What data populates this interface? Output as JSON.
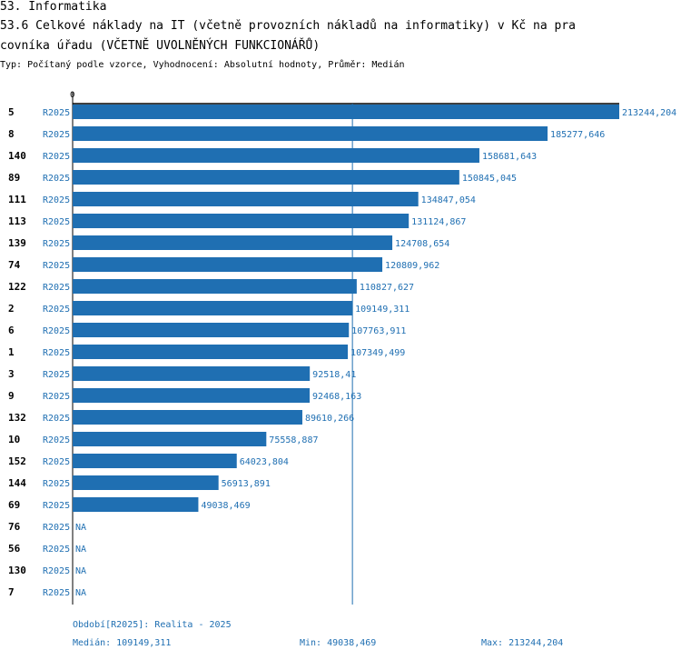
{
  "header": {
    "section": "53. Informatika",
    "title_line1": "53.6 Celkové náklady na IT (včetně provozních nákladů na informatiky) v Kč na pra",
    "title_line2": "covníka úřadu (VČETNĚ UVOLNĚNÝCH FUNKCIONÁŘŮ)",
    "subtitle": "Typ: Počítaný podle vzorce, Vyhodnocení: Absolutní hodnoty, Průměr: Medián"
  },
  "chart_data": {
    "type": "bar",
    "orientation": "horizontal",
    "axis_zero_label": "0",
    "xlim": [
      0,
      213244.204
    ],
    "reference_line": {
      "label": "Medián",
      "value": 109149.311
    },
    "bar_color": "#1f6fb2",
    "rows": [
      {
        "id": "5",
        "series": "R2025",
        "value": 213244.204,
        "label": "213244,204"
      },
      {
        "id": "8",
        "series": "R2025",
        "value": 185277.646,
        "label": "185277,646"
      },
      {
        "id": "140",
        "series": "R2025",
        "value": 158681.643,
        "label": "158681,643"
      },
      {
        "id": "89",
        "series": "R2025",
        "value": 150845.045,
        "label": "150845,045"
      },
      {
        "id": "111",
        "series": "R2025",
        "value": 134847.054,
        "label": "134847,054"
      },
      {
        "id": "113",
        "series": "R2025",
        "value": 131124.867,
        "label": "131124,867"
      },
      {
        "id": "139",
        "series": "R2025",
        "value": 124708.654,
        "label": "124708,654"
      },
      {
        "id": "74",
        "series": "R2025",
        "value": 120809.962,
        "label": "120809,962"
      },
      {
        "id": "122",
        "series": "R2025",
        "value": 110827.627,
        "label": "110827,627"
      },
      {
        "id": "2",
        "series": "R2025",
        "value": 109149.311,
        "label": "109149,311"
      },
      {
        "id": "6",
        "series": "R2025",
        "value": 107763.911,
        "label": "107763,911"
      },
      {
        "id": "1",
        "series": "R2025",
        "value": 107349.499,
        "label": "107349,499"
      },
      {
        "id": "3",
        "series": "R2025",
        "value": 92518.41,
        "label": "92518,41"
      },
      {
        "id": "9",
        "series": "R2025",
        "value": 92468.163,
        "label": "92468,163"
      },
      {
        "id": "132",
        "series": "R2025",
        "value": 89610.266,
        "label": "89610,266"
      },
      {
        "id": "10",
        "series": "R2025",
        "value": 75558.887,
        "label": "75558,887"
      },
      {
        "id": "152",
        "series": "R2025",
        "value": 64023.804,
        "label": "64023,804"
      },
      {
        "id": "144",
        "series": "R2025",
        "value": 56913.891,
        "label": "56913,891"
      },
      {
        "id": "69",
        "series": "R2025",
        "value": 49038.469,
        "label": "49038,469"
      },
      {
        "id": "76",
        "series": "R2025",
        "value": null,
        "label": "NA"
      },
      {
        "id": "56",
        "series": "R2025",
        "value": null,
        "label": "NA"
      },
      {
        "id": "130",
        "series": "R2025",
        "value": null,
        "label": "NA"
      },
      {
        "id": "7",
        "series": "R2025",
        "value": null,
        "label": "NA"
      }
    ]
  },
  "footer": {
    "period": "Období[R2025]: Realita - 2025",
    "median": "Medián: 109149,311",
    "min": "Min: 49038,469",
    "max": "Max: 213244,204"
  }
}
